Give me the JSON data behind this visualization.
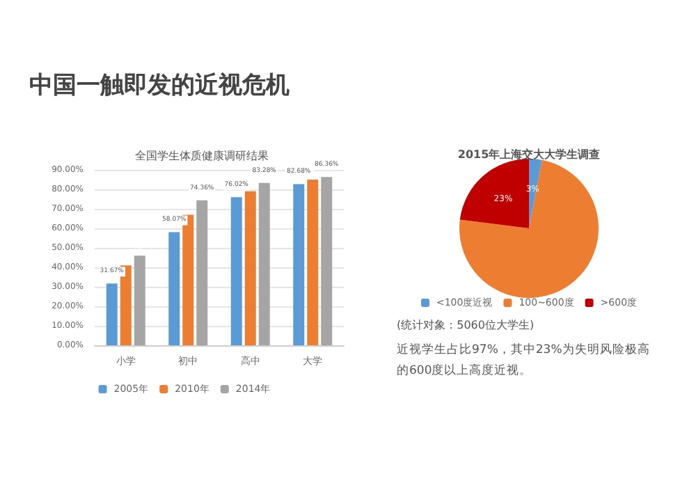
{
  "chart_data": [
    {
      "type": "bar",
      "title": "中国一触即发的近视危机",
      "subtitle": "全国学生体质健康调研结果",
      "categories": [
        "小学",
        "初中",
        "高中",
        "大学"
      ],
      "series": [
        {
          "name": "2005年",
          "color": "#5b9bd5",
          "values": [
            31.67,
            58.07,
            76.02,
            82.68
          ],
          "value_labels": [
            "31.67%",
            "58.07%",
            "76.02%",
            "82.68%"
          ]
        },
        {
          "name": "2010年",
          "color": "#ed7d31",
          "values": [
            41,
            67,
            79,
            85
          ],
          "value_labels": [
            null,
            null,
            null,
            null
          ]
        },
        {
          "name": "2014年",
          "color": "#a5a5a5",
          "values": [
            46,
            74.36,
            83.28,
            86.36
          ],
          "value_labels": [
            null,
            "74.36%",
            "83.28%",
            "86.36%"
          ]
        }
      ],
      "ylim": [
        0,
        90
      ],
      "yticks": [
        {
          "value": 0,
          "label": "0.00%"
        },
        {
          "value": 10,
          "label": "10.00%"
        },
        {
          "value": 20,
          "label": "20.00%"
        },
        {
          "value": 30,
          "label": "30.00%"
        },
        {
          "value": 40,
          "label": "40.00%"
        },
        {
          "value": 50,
          "label": "50.00%"
        },
        {
          "value": 60,
          "label": "60.00%"
        },
        {
          "value": 70,
          "label": "70.00%"
        },
        {
          "value": 80,
          "label": "80.00%"
        },
        {
          "value": 90,
          "label": "90.00%"
        }
      ],
      "grid": "y",
      "legend": "bottom"
    },
    {
      "type": "pie",
      "title": "2015年上海交大大学生调查",
      "categories": [
        "<100度近视",
        "100~600度",
        ">600度"
      ],
      "values": [
        3,
        74,
        23
      ],
      "colors": [
        "#5b9bd5",
        "#ed7d31",
        "#c00000"
      ],
      "value_labels": [
        "3%",
        null,
        "23%"
      ],
      "legend": "bottom",
      "annotations": [
        "(统计对象：5060位大学生)",
        "近视学生占比97%，其中23%为失明风险极高的600度以上高度近视。"
      ]
    }
  ]
}
